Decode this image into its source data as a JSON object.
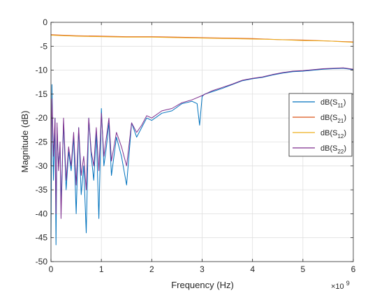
{
  "chart_data": {
    "type": "line",
    "xlabel": "Frequency (Hz)",
    "ylabel": "Magnitude (dB)",
    "x_exponent_label": "×10",
    "x_exponent_power": "9",
    "xlim": [
      0,
      6
    ],
    "ylim": [
      -50,
      0
    ],
    "xticks": [
      0,
      1,
      2,
      3,
      4,
      5,
      6
    ],
    "yticks": [
      0,
      -5,
      -10,
      -15,
      -20,
      -25,
      -30,
      -35,
      -40,
      -45,
      -50
    ],
    "xtick_labels": [
      "0",
      "1",
      "2",
      "3",
      "4",
      "5",
      "6"
    ],
    "ytick_labels": [
      "0",
      "-5",
      "-10",
      "-15",
      "-20",
      "-25",
      "-30",
      "-35",
      "-40",
      "-45",
      "-50"
    ],
    "grid": true,
    "legend_position": "right-middle",
    "x_units_note": "x values in units of 10^9 Hz",
    "series": [
      {
        "name": "dB(S11)",
        "label_main": "dB(S",
        "label_sub": "11",
        "label_end": ")",
        "color": "#0072BD",
        "x": [
          0.0,
          0.02,
          0.05,
          0.08,
          0.1,
          0.12,
          0.15,
          0.18,
          0.2,
          0.25,
          0.3,
          0.35,
          0.4,
          0.45,
          0.5,
          0.55,
          0.6,
          0.65,
          0.7,
          0.75,
          0.8,
          0.85,
          0.9,
          0.95,
          1.0,
          1.05,
          1.1,
          1.15,
          1.2,
          1.3,
          1.4,
          1.5,
          1.6,
          1.7,
          1.8,
          1.9,
          2.0,
          2.2,
          2.4,
          2.6,
          2.8,
          2.9,
          2.95,
          3.0,
          3.05,
          3.2,
          3.4,
          3.6,
          3.8,
          4.0,
          4.2,
          4.4,
          4.6,
          4.8,
          5.0,
          5.2,
          5.4,
          5.6,
          5.8,
          6.0
        ],
        "y": [
          -45,
          -13,
          -33,
          -20,
          -46.5,
          -22,
          -30,
          -26,
          -38,
          -21,
          -35,
          -27,
          -31,
          -24,
          -40,
          -22,
          -36,
          -30,
          -44,
          -20,
          -28,
          -33,
          -23,
          -41,
          -18,
          -30,
          -26,
          -21,
          -32,
          -24,
          -28,
          -34,
          -21,
          -24,
          -22,
          -20,
          -20.5,
          -19,
          -18.5,
          -17,
          -16.5,
          -17,
          -21.5,
          -15.5,
          -15,
          -14.5,
          -13.8,
          -13,
          -12.2,
          -11.8,
          -11.5,
          -11,
          -10.6,
          -10.3,
          -10.2,
          -10,
          -9.8,
          -9.7,
          -9.6,
          -9.9
        ]
      },
      {
        "name": "dB(S21)",
        "label_main": "dB(S",
        "label_sub": "21",
        "label_end": ")",
        "color": "#D95319",
        "x": [
          0.0,
          0.5,
          1.0,
          1.5,
          2.0,
          2.5,
          3.0,
          3.5,
          4.0,
          4.5,
          5.0,
          5.5,
          6.0
        ],
        "y": [
          -2.6,
          -2.8,
          -2.9,
          -3.0,
          -3.0,
          -3.1,
          -3.2,
          -3.3,
          -3.4,
          -3.6,
          -3.7,
          -3.9,
          -4.1
        ]
      },
      {
        "name": "dB(S12)",
        "label_main": "dB(S",
        "label_sub": "12",
        "label_end": ")",
        "color": "#EDB120",
        "x": [
          0.0,
          0.5,
          1.0,
          1.5,
          2.0,
          2.5,
          3.0,
          3.5,
          4.0,
          4.5,
          5.0,
          5.5,
          6.0
        ],
        "y": [
          -2.7,
          -2.9,
          -3.0,
          -3.1,
          -3.1,
          -3.2,
          -3.3,
          -3.4,
          -3.5,
          -3.6,
          -3.8,
          -3.9,
          -4.2
        ]
      },
      {
        "name": "dB(S22)",
        "label_main": "dB(S",
        "label_sub": "22",
        "label_end": ")",
        "color": "#7E2F8E",
        "x": [
          0.0,
          0.02,
          0.05,
          0.08,
          0.1,
          0.12,
          0.15,
          0.18,
          0.2,
          0.25,
          0.3,
          0.35,
          0.4,
          0.45,
          0.5,
          0.55,
          0.6,
          0.65,
          0.7,
          0.75,
          0.8,
          0.85,
          0.9,
          0.95,
          1.0,
          1.05,
          1.1,
          1.15,
          1.2,
          1.3,
          1.4,
          1.5,
          1.6,
          1.7,
          1.8,
          1.9,
          2.0,
          2.2,
          2.4,
          2.6,
          2.8,
          3.0,
          3.2,
          3.4,
          3.6,
          3.8,
          4.0,
          4.2,
          4.4,
          4.6,
          4.8,
          5.0,
          5.2,
          5.4,
          5.6,
          5.8,
          6.0
        ],
        "y": [
          -30,
          -16,
          -28,
          -20,
          -40,
          -21,
          -31,
          -25,
          -41,
          -20,
          -33,
          -26,
          -30,
          -23,
          -34,
          -22,
          -32,
          -28,
          -35,
          -20,
          -27,
          -30,
          -22,
          -31,
          -19,
          -28,
          -24,
          -20,
          -29,
          -23,
          -26,
          -30,
          -21,
          -23,
          -21.5,
          -19.5,
          -20,
          -18.5,
          -18,
          -16.8,
          -16.2,
          -15.3,
          -14.3,
          -13.6,
          -12.9,
          -12.1,
          -11.7,
          -11.4,
          -10.9,
          -10.5,
          -10.2,
          -10.1,
          -9.9,
          -9.7,
          -9.6,
          -9.5,
          -9.8
        ]
      }
    ]
  }
}
